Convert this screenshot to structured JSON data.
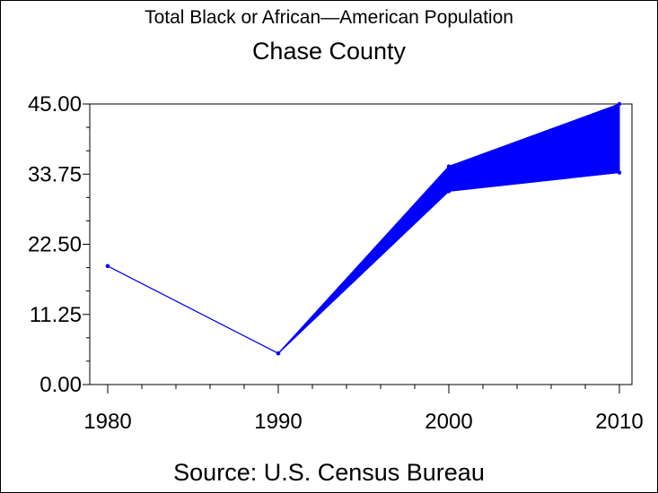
{
  "titles": {
    "line1": "Total Black or African—American Population",
    "line2": "Chase County"
  },
  "footer": "Source: U.S. Census Bureau",
  "chart_data": {
    "type": "line",
    "x": [
      1980,
      1990,
      2000,
      2010
    ],
    "x_tick_labels": [
      "1980",
      "1990",
      "2000",
      "2010"
    ],
    "y_tick_labels": [
      "0.00",
      "11.25",
      "22.50",
      "33.75",
      "45.00"
    ],
    "ylim": [
      0,
      45
    ],
    "band": {
      "upper": [
        19,
        5,
        35,
        45
      ],
      "lower": [
        19,
        5,
        31,
        34
      ]
    },
    "grid": false,
    "color": "#0000ff"
  }
}
